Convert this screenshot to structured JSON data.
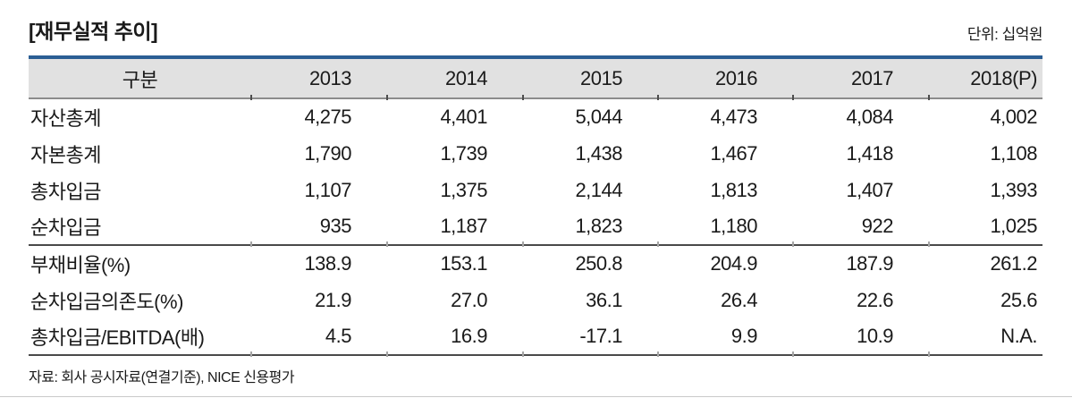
{
  "title": "[재무실적 추이]",
  "unit_label": "단위: 십억원",
  "source": "자료: 회사 공시자료(연결기준), NICE 신용평가",
  "colors": {
    "accent_blue": "#2b5e94",
    "header_bg": "#e1e1e1",
    "header_rule": "#8c8c8c",
    "section_rule": "#4a4a4a",
    "text": "#1a1a1a"
  },
  "chart_data": {
    "type": "table",
    "title": "재무실적 추이",
    "unit": "십억원",
    "columns": [
      "구분",
      "2013",
      "2014",
      "2015",
      "2016",
      "2017",
      "2018(P)"
    ],
    "rows": [
      {
        "label": "자산총계",
        "values": [
          "4,275",
          "4,401",
          "5,044",
          "4,473",
          "4,084",
          "4,002"
        ],
        "section_end": false
      },
      {
        "label": "자본총계",
        "values": [
          "1,790",
          "1,739",
          "1,438",
          "1,467",
          "1,418",
          "1,108"
        ],
        "section_end": false
      },
      {
        "label": "총차입금",
        "values": [
          "1,107",
          "1,375",
          "2,144",
          "1,813",
          "1,407",
          "1,393"
        ],
        "section_end": false
      },
      {
        "label": "순차입금",
        "values": [
          "935",
          "1,187",
          "1,823",
          "1,180",
          "922",
          "1,025"
        ],
        "section_end": true
      },
      {
        "label": "부채비율(%)",
        "values": [
          "138.9",
          "153.1",
          "250.8",
          "204.9",
          "187.9",
          "261.2"
        ],
        "section_end": false
      },
      {
        "label": "순차입금의존도(%)",
        "values": [
          "21.9",
          "27.0",
          "36.1",
          "26.4",
          "22.6",
          "25.6"
        ],
        "section_end": false
      },
      {
        "label": "총차입금/EBITDA(배)",
        "values": [
          "4.5",
          "16.9",
          "-17.1",
          "9.9",
          "10.9",
          "N.A."
        ],
        "section_end": false
      }
    ]
  }
}
